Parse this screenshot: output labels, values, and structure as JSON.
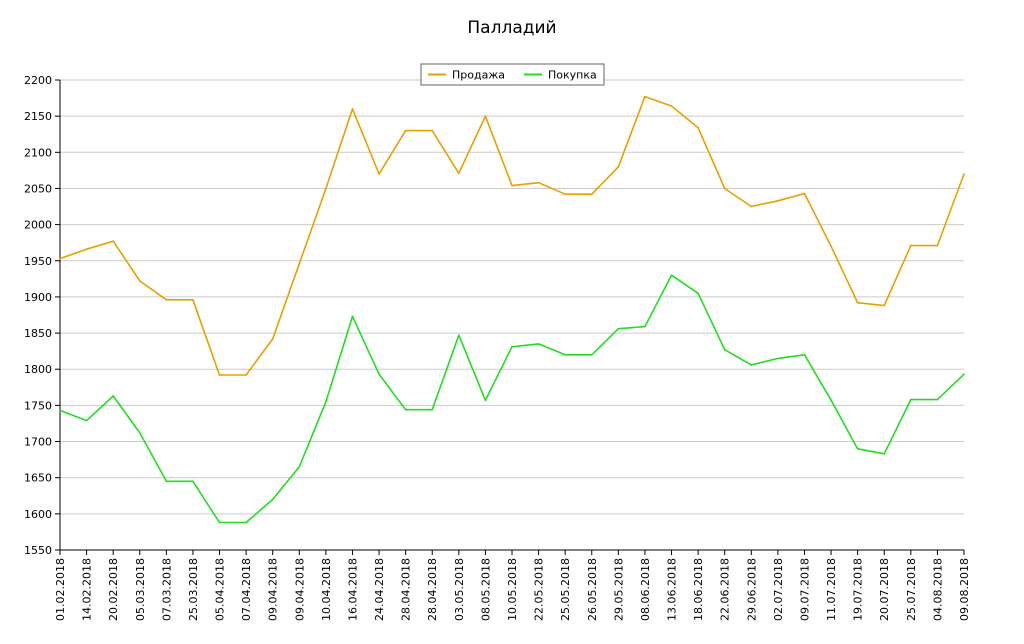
{
  "chart_data": {
    "type": "line",
    "title": "Палладий",
    "xlabel": "",
    "ylabel": "",
    "ylim": [
      1550,
      2200
    ],
    "yticks": [
      1550,
      1600,
      1650,
      1700,
      1750,
      1800,
      1850,
      1900,
      1950,
      2000,
      2050,
      2100,
      2150,
      2200
    ],
    "grid": true,
    "legend_position": "top-center",
    "categories": [
      "01.02.2018",
      "14.02.2018",
      "20.02.2018",
      "05.03.2018",
      "07.03.2018",
      "25.03.2018",
      "05.04.2018",
      "07.04.2018",
      "09.04.2018",
      "09.04.2018",
      "10.04.2018",
      "16.04.2018",
      "24.04.2018",
      "28.04.2018",
      "28.04.2018",
      "03.05.2018",
      "08.05.2018",
      "10.05.2018",
      "22.05.2018",
      "25.05.2018",
      "26.05.2018",
      "29.05.2018",
      "08.06.2018",
      "13.06.2018",
      "18.06.2018",
      "22.06.2018",
      "29.06.2018",
      "02.07.2018",
      "09.07.2018",
      "11.07.2018",
      "19.07.2018",
      "20.07.2018",
      "25.07.2018",
      "04.08.2018",
      "09.08.2018"
    ],
    "series": [
      {
        "name": "Продажа",
        "color": "#e6a000",
        "values": [
          1953,
          1966,
          1977,
          1922,
          1896,
          1896,
          1792,
          1792,
          1842,
          1946,
          2050,
          2160,
          2070,
          2130,
          2130,
          2071,
          2150,
          2054,
          2058,
          2042,
          2042,
          2080,
          2177,
          2164,
          2134,
          2050,
          2025,
          2033,
          2043,
          1970,
          1892,
          1888,
          1971,
          1971,
          2070
        ]
      },
      {
        "name": "Покупка",
        "color": "#22dd22",
        "values": [
          1743,
          1729,
          1763,
          1712,
          1645,
          1645,
          1588,
          1588,
          1620,
          1665,
          1755,
          1873,
          1793,
          1744,
          1744,
          1847,
          1757,
          1831,
          1835,
          1820,
          1820,
          1856,
          1859,
          1930,
          1905,
          1827,
          1806,
          1815,
          1820,
          1757,
          1690,
          1683,
          1758,
          1758,
          1793
        ]
      }
    ]
  }
}
